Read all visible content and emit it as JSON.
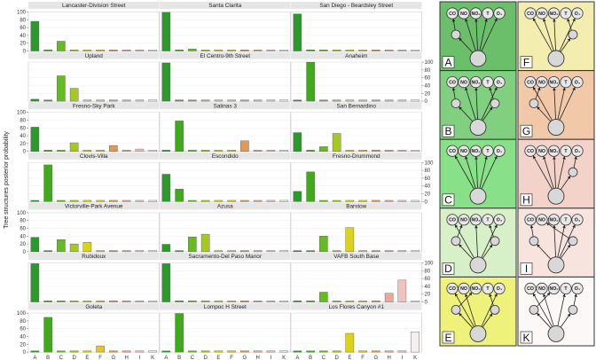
{
  "chart_data": {
    "type": "bar",
    "ylabel": "Tree structures posterior probability",
    "categories": [
      "A",
      "B",
      "C",
      "D",
      "E",
      "F",
      "G",
      "H",
      "I",
      "K"
    ],
    "ylim": [
      0,
      100
    ],
    "yticks": [
      0,
      20,
      40,
      60,
      80,
      100
    ],
    "category_colors": [
      "#2a9a2a",
      "#41aa1c",
      "#66bb22",
      "#a6c91d",
      "#dcd21c",
      "#e8c22e",
      "#e09a58",
      "#e8a89c",
      "#efc4c0",
      "#f4f0ef"
    ],
    "stations": [
      {
        "name": "Lancaster-Division Street",
        "values": [
          76,
          3,
          25,
          3,
          3,
          3,
          3,
          3,
          3,
          3
        ]
      },
      {
        "name": "Santa Clarita",
        "values": [
          99,
          3,
          5,
          3,
          3,
          3,
          3,
          3,
          3,
          3
        ]
      },
      {
        "name": "San Diego - Beardsley Street",
        "values": [
          95,
          3,
          3,
          3,
          3,
          3,
          3,
          3,
          3,
          3
        ]
      },
      {
        "name": "Upland",
        "values": [
          5,
          3,
          65,
          33,
          3,
          3,
          3,
          3,
          3,
          3
        ]
      },
      {
        "name": "El Centro-9th Street",
        "values": [
          98,
          3,
          3,
          3,
          3,
          3,
          3,
          3,
          3,
          3
        ]
      },
      {
        "name": "Anaheim",
        "values": [
          3,
          100,
          3,
          3,
          3,
          3,
          3,
          3,
          3,
          3
        ]
      },
      {
        "name": "Fresno-Sky Park",
        "values": [
          62,
          3,
          3,
          22,
          3,
          3,
          15,
          3,
          6,
          3
        ]
      },
      {
        "name": "Salinas 3",
        "values": [
          3,
          78,
          3,
          3,
          3,
          3,
          27,
          3,
          3,
          3
        ]
      },
      {
        "name": "San Bernardino",
        "values": [
          48,
          3,
          12,
          46,
          3,
          3,
          3,
          3,
          3,
          3
        ]
      },
      {
        "name": "Clovis-Villa",
        "values": [
          3,
          94,
          3,
          3,
          3,
          3,
          3,
          3,
          3,
          3
        ]
      },
      {
        "name": "Escondido",
        "values": [
          70,
          32,
          3,
          3,
          3,
          3,
          3,
          3,
          3,
          3
        ]
      },
      {
        "name": "Fresno-Drummond",
        "values": [
          26,
          76,
          3,
          3,
          3,
          3,
          3,
          3,
          3,
          3
        ]
      },
      {
        "name": "Victorville-Park Avenue",
        "values": [
          37,
          3,
          31,
          20,
          24,
          3,
          3,
          3,
          3,
          3
        ]
      },
      {
        "name": "Azusa",
        "values": [
          19,
          3,
          38,
          45,
          3,
          3,
          3,
          3,
          3,
          3
        ]
      },
      {
        "name": "Barstow",
        "values": [
          3,
          3,
          40,
          3,
          62,
          3,
          3,
          3,
          3,
          3
        ]
      },
      {
        "name": "Rubidoux",
        "values": [
          98,
          3,
          3,
          3,
          3,
          3,
          3,
          3,
          3,
          3
        ]
      },
      {
        "name": "Sacramento-Del Paso Manor",
        "values": [
          98,
          3,
          3,
          3,
          3,
          3,
          3,
          3,
          3,
          3
        ]
      },
      {
        "name": "VAFB South Base",
        "values": [
          3,
          3,
          25,
          3,
          3,
          3,
          3,
          22,
          56,
          3
        ]
      },
      {
        "name": "Goleta",
        "values": [
          3,
          89,
          3,
          3,
          3,
          16,
          3,
          3,
          3,
          3
        ]
      },
      {
        "name": "Lompoc H Street",
        "values": [
          3,
          99,
          3,
          3,
          3,
          3,
          3,
          3,
          3,
          3
        ]
      },
      {
        "name": "Los Flores Canyon #1",
        "values": [
          3,
          3,
          3,
          3,
          48,
          3,
          3,
          3,
          3,
          52
        ]
      }
    ],
    "tree_structures": {
      "node_labels": [
        "CO",
        "NO",
        "NO₂",
        "T",
        "O₃"
      ],
      "panels": [
        {
          "letter": "A",
          "color": "#6bbf6b",
          "middle": [
            0
          ]
        },
        {
          "letter": "F",
          "color": "#f3edb0",
          "middle": [
            3
          ]
        },
        {
          "letter": "B",
          "color": "#80d080",
          "middle": [
            0,
            3
          ]
        },
        {
          "letter": "G",
          "color": "#f1c8a8",
          "middle": [
            1
          ]
        },
        {
          "letter": "C",
          "color": "#88e088",
          "middle": []
        },
        {
          "letter": "H",
          "color": "#f3d2ca",
          "middle": [
            4
          ]
        },
        {
          "letter": "D",
          "color": "#d8f0c8",
          "middle": [
            1,
            3
          ]
        },
        {
          "letter": "I",
          "color": "#f8e4df",
          "middle": [
            0,
            1
          ]
        },
        {
          "letter": "E",
          "color": "#eef27a",
          "middle": [
            2,
            3
          ]
        },
        {
          "letter": "K",
          "color": "#fcf8f5",
          "middle": [
            2,
            4
          ]
        }
      ]
    }
  }
}
